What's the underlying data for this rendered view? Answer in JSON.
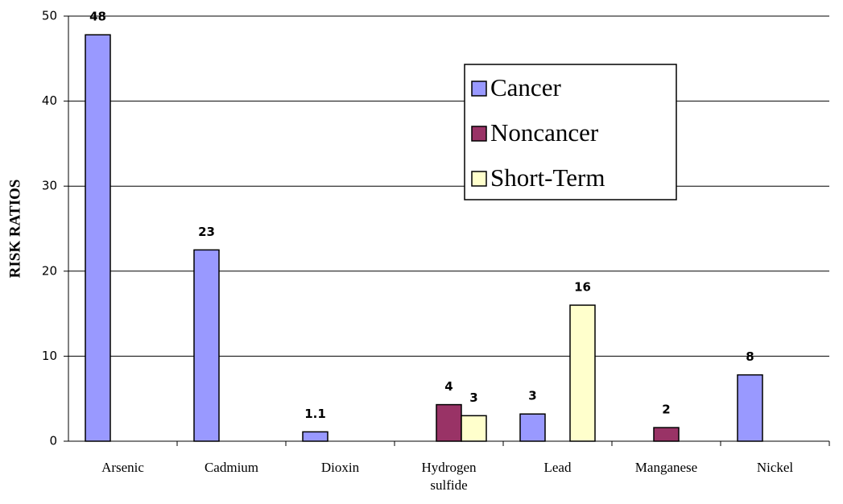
{
  "chart_data": {
    "type": "bar",
    "y_label": "RISK RATIOS",
    "categories": [
      "Arsenic",
      "Cadmium",
      "Dioxin",
      "Hydrogen sulfide",
      "Lead",
      "Manganese",
      "Nickel"
    ],
    "series": [
      {
        "name": "Cancer",
        "color": "#9999ff",
        "values": [
          47.8,
          22.5,
          1.1,
          null,
          3.2,
          null,
          7.8
        ],
        "value_labels": [
          "48",
          "23",
          "1.1",
          null,
          "3",
          null,
          "8"
        ]
      },
      {
        "name": "Noncancer",
        "color": "#993366",
        "values": [
          null,
          null,
          null,
          4.3,
          null,
          1.6,
          null
        ],
        "value_labels": [
          null,
          null,
          null,
          "4",
          null,
          "2",
          null
        ]
      },
      {
        "name": "Short-Term",
        "color": "#ffffcc",
        "values": [
          null,
          null,
          null,
          3,
          16,
          null,
          null
        ],
        "value_labels": [
          null,
          null,
          null,
          "3",
          "16",
          null,
          null
        ]
      }
    ],
    "ylim": [
      0,
      50
    ],
    "yticks": [
      0,
      10,
      20,
      30,
      40,
      50
    ],
    "grid": true,
    "legend": "upper right"
  }
}
